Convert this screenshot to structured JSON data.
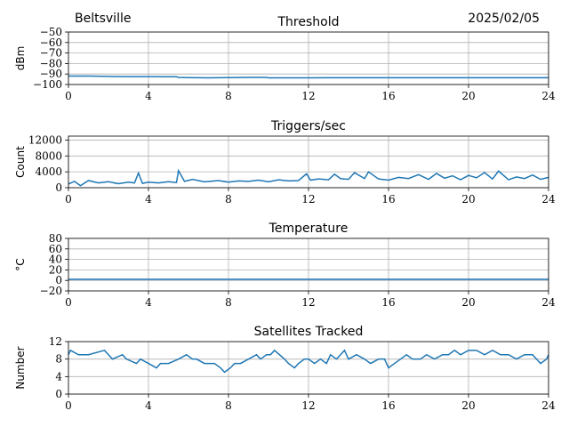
{
  "header": {
    "station": "Beltsville",
    "date": "2025/02/05"
  },
  "chart_data": [
    {
      "type": "line",
      "title": "Threshold",
      "ylabel": "dBm",
      "xlim": [
        0,
        24
      ],
      "ylim": [
        -100,
        -50
      ],
      "xticks": [
        0,
        4,
        8,
        12,
        16,
        20,
        24
      ],
      "yticks": [
        -100,
        -90,
        -80,
        -70,
        -60,
        -50
      ],
      "grid": true,
      "color": "#1f77b4",
      "series": [
        {
          "x": [
            0,
            1,
            2,
            3,
            4,
            5,
            5.4,
            5.5,
            6,
            7,
            8,
            9,
            9.9,
            10,
            11,
            12,
            13,
            14,
            15,
            16,
            17,
            18,
            19,
            20,
            21,
            22,
            23,
            24
          ],
          "y": [
            -92,
            -92,
            -92.3,
            -92.5,
            -92.5,
            -92.6,
            -92.6,
            -93.2,
            -93.4,
            -93.6,
            -93.4,
            -93.2,
            -93.2,
            -93.6,
            -93.6,
            -93.6,
            -93.5,
            -93.5,
            -93.5,
            -93.5,
            -93.5,
            -93.5,
            -93.5,
            -93.5,
            -93.5,
            -93.5,
            -93.5,
            -93.5
          ]
        }
      ]
    },
    {
      "type": "line",
      "title": "Triggers/sec",
      "ylabel": "Count",
      "xlim": [
        0,
        24
      ],
      "ylim": [
        0,
        13000
      ],
      "xticks": [
        0,
        4,
        8,
        12,
        16,
        20,
        24
      ],
      "yticks": [
        0,
        4000,
        8000,
        12000
      ],
      "grid": true,
      "color": "#1f77b4",
      "series": [
        {
          "x": [
            0,
            0.3,
            0.6,
            1,
            1.5,
            2,
            2.5,
            3,
            3.3,
            3.5,
            3.7,
            4,
            4.5,
            5,
            5.4,
            5.5,
            5.8,
            6.2,
            6.8,
            7.5,
            8,
            8.5,
            9,
            9.5,
            10,
            10.5,
            11,
            11.5,
            11.9,
            12.1,
            12.5,
            13,
            13.3,
            13.6,
            14,
            14.3,
            14.8,
            15,
            15.5,
            16,
            16.5,
            17,
            17.5,
            18,
            18.4,
            18.8,
            19.2,
            19.6,
            20,
            20.4,
            20.8,
            21.2,
            21.5,
            22,
            22.4,
            22.8,
            23.2,
            23.6,
            24
          ],
          "y": [
            900,
            1600,
            500,
            1800,
            1200,
            1500,
            1000,
            1400,
            1200,
            3700,
            1100,
            1400,
            1200,
            1500,
            1300,
            4300,
            1600,
            2100,
            1500,
            1800,
            1400,
            1700,
            1600,
            1900,
            1500,
            2000,
            1700,
            1800,
            3500,
            1900,
            2200,
            2000,
            3400,
            2300,
            2100,
            3800,
            2300,
            4000,
            2200,
            1900,
            2600,
            2300,
            3300,
            2100,
            3600,
            2400,
            3000,
            2000,
            3100,
            2500,
            3800,
            2200,
            4200,
            2000,
            2700,
            2300,
            3200,
            2100,
            2600
          ]
        }
      ]
    },
    {
      "type": "line",
      "title": "Temperature",
      "ylabel": "°C",
      "xlim": [
        0,
        24
      ],
      "ylim": [
        -20,
        80
      ],
      "xticks": [
        0,
        4,
        8,
        12,
        16,
        20,
        24
      ],
      "yticks": [
        -20,
        0,
        20,
        40,
        60,
        80
      ],
      "grid": true,
      "color": "#1f77b4",
      "series": [
        {
          "x": [
            0,
            24
          ],
          "y": [
            2,
            2
          ]
        }
      ]
    },
    {
      "type": "line",
      "title": "Satellites Tracked",
      "ylabel": "Number",
      "xlim": [
        0,
        24
      ],
      "ylim": [
        0,
        12
      ],
      "xticks": [
        0,
        4,
        8,
        12,
        16,
        20,
        24
      ],
      "yticks": [
        0,
        4,
        8,
        12
      ],
      "grid": true,
      "color": "#1f77b4",
      "series": [
        {
          "x": [
            0,
            0.1,
            0.5,
            1,
            1.8,
            2,
            2.2,
            2.7,
            2.9,
            3.4,
            3.6,
            4,
            4.4,
            4.6,
            5,
            5.5,
            5.9,
            6.2,
            6.4,
            6.8,
            7.3,
            7.6,
            7.8,
            8.1,
            8.3,
            8.6,
            9,
            9.4,
            9.6,
            9.9,
            10.1,
            10.3,
            10.8,
            11,
            11.3,
            11.5,
            11.8,
            12,
            12.3,
            12.6,
            12.9,
            13.1,
            13.4,
            13.8,
            14,
            14.4,
            14.8,
            15.1,
            15.5,
            15.8,
            16,
            16.3,
            16.6,
            16.9,
            17.2,
            17.6,
            17.9,
            18.3,
            18.7,
            19,
            19.3,
            19.6,
            20,
            20.4,
            20.8,
            21.2,
            21.6,
            22,
            22.4,
            22.8,
            23.2,
            23.6,
            23.9,
            24
          ],
          "y": [
            9,
            10,
            9,
            9,
            10,
            9,
            8,
            9,
            8,
            7,
            8,
            7,
            6,
            7,
            7,
            8,
            9,
            8,
            8,
            7,
            7,
            6,
            5,
            6,
            7,
            7,
            8,
            9,
            8,
            9,
            9,
            10,
            8,
            7,
            6,
            7,
            8,
            8,
            7,
            8,
            7,
            9,
            8,
            10,
            8,
            9,
            8,
            7,
            8,
            8,
            6,
            7,
            8,
            9,
            8,
            8,
            9,
            8,
            9,
            9,
            10,
            9,
            10,
            10,
            9,
            10,
            9,
            9,
            8,
            9,
            9,
            7,
            8,
            9
          ]
        }
      ]
    }
  ]
}
